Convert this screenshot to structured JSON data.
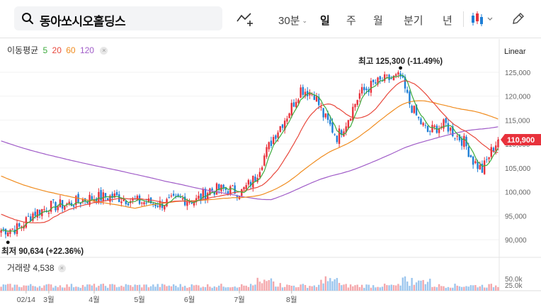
{
  "search": {
    "query": "동아쏘시오홀딩스"
  },
  "toolbar": {
    "interval_label": "30분",
    "tabs": [
      "일",
      "주",
      "월",
      "분기",
      "년"
    ],
    "active_tab": "일"
  },
  "legend": {
    "ma_label": "이동평균",
    "periods": [
      {
        "label": "5",
        "color": "#3dab3d"
      },
      {
        "label": "20",
        "color": "#e8483c"
      },
      {
        "label": "60",
        "color": "#f08c1f"
      },
      {
        "label": "120",
        "color": "#a05cc8"
      }
    ],
    "scale_label": "Linear",
    "volume_label": "거래량",
    "volume_value": "4,538"
  },
  "colors": {
    "up": "#e8323c",
    "down": "#1e7fd6",
    "current": "#e8323c"
  },
  "chart_data": {
    "type": "candlestick",
    "price_axis": {
      "min": 87500,
      "max": 127500,
      "ticks": [
        "90,000",
        "95,000",
        "100,000",
        "105,000",
        "110,000",
        "115,000",
        "120,000",
        "125,000"
      ]
    },
    "volume_axis": {
      "ticks": [
        "25.0k",
        "50.0k"
      ]
    },
    "x_tick_labels": [
      "02/14",
      "3월",
      "4월",
      "5월",
      "6월",
      "7월",
      "8월"
    ],
    "current_price": "110,900",
    "current_value": 110900,
    "high_annotation": "최고 125,300 (-11.49%)",
    "high_value": 125300,
    "low_annotation": "최저 90,634 (+22.36%)",
    "low_value": 90634,
    "close_anchors": [
      [
        0,
        92000
      ],
      [
        8,
        92500
      ],
      [
        14,
        95500
      ],
      [
        22,
        97000
      ],
      [
        30,
        97500
      ],
      [
        40,
        98800
      ],
      [
        50,
        99000
      ],
      [
        60,
        98000
      ],
      [
        70,
        97500
      ],
      [
        80,
        98500
      ],
      [
        86,
        98200
      ],
      [
        92,
        100500
      ],
      [
        100,
        100500
      ],
      [
        106,
        100000
      ],
      [
        112,
        103000
      ],
      [
        116,
        107500
      ],
      [
        120,
        111500
      ],
      [
        126,
        116000
      ],
      [
        132,
        121500
      ],
      [
        138,
        120500
      ],
      [
        142,
        116000
      ],
      [
        148,
        111500
      ],
      [
        152,
        114500
      ],
      [
        158,
        120500
      ],
      [
        164,
        122500
      ],
      [
        170,
        123500
      ],
      [
        176,
        124000
      ],
      [
        180,
        118500
      ],
      [
        184,
        115000
      ],
      [
        188,
        112500
      ],
      [
        192,
        113500
      ],
      [
        196,
        114000
      ],
      [
        200,
        112000
      ],
      [
        204,
        110500
      ],
      [
        208,
        106500
      ],
      [
        212,
        104500
      ],
      [
        216,
        108500
      ],
      [
        219,
        110900
      ]
    ],
    "ma_initial": {
      "ma5": 92000,
      "ma20": 95500,
      "ma60": 103500,
      "ma120": 110800
    }
  }
}
